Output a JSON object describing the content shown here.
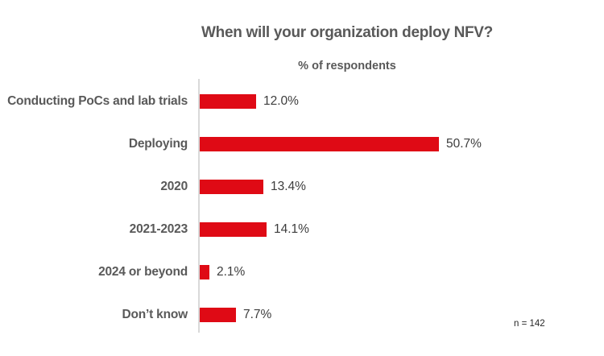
{
  "chart_data": {
    "type": "bar",
    "orientation": "horizontal",
    "title": "When will your organization deploy NFV?",
    "subtitle": "% of respondents",
    "categories": [
      "Conducting PoCs and lab trials",
      "Deploying",
      "2020",
      "2021-2023",
      "2024 or beyond",
      "Don’t know"
    ],
    "values": [
      12.0,
      50.7,
      13.4,
      14.1,
      2.1,
      7.7
    ],
    "value_labels": [
      "12.0%",
      "50.7%",
      "13.4%",
      "14.1%",
      "2.1%",
      "7.7%"
    ],
    "note": "n = 142",
    "xlim": [
      0,
      55
    ],
    "grid": false,
    "legend": "none",
    "colors": {
      "bar": "#df0a15",
      "category_label": "#595959",
      "value_label": "#3d3d3d",
      "title": "#595959",
      "axis_line": "#d9d9d9",
      "note": "#262626"
    }
  }
}
